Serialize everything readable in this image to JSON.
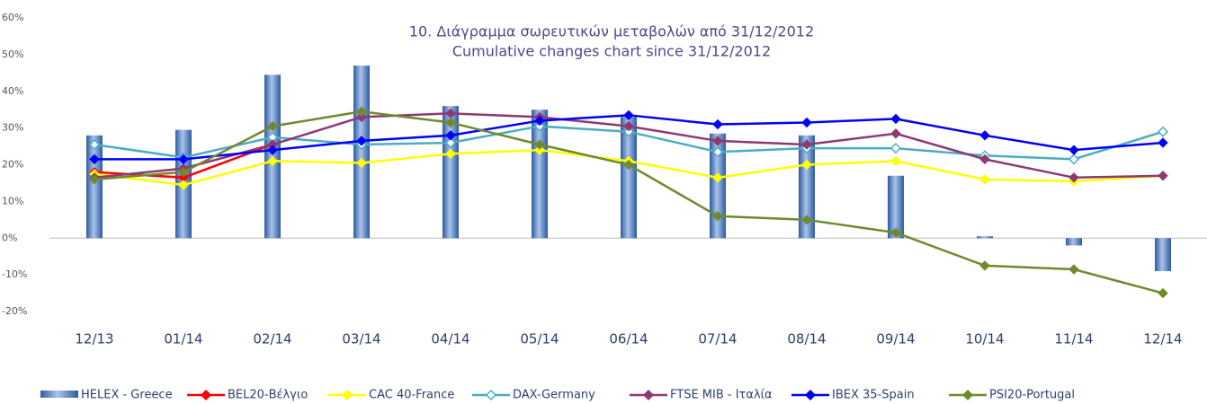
{
  "chart_data": {
    "type": "bar-line",
    "title": [
      "10.  Διάγραμμα σωρευτικών μεταβολών από 31/12/2012",
      "Cumulative changes chart since 31/12/2012"
    ],
    "categories": [
      "12/13",
      "01/14",
      "02/14",
      "03/14",
      "04/14",
      "05/14",
      "06/14",
      "07/14",
      "08/14",
      "09/14",
      "10/14",
      "11/14",
      "12/14"
    ],
    "series": [
      {
        "name": "HELEX - Greece",
        "type": "bar",
        "color": "#4f81bd",
        "values": [
          28,
          29.5,
          44.5,
          47,
          36,
          35,
          33,
          28.5,
          28,
          17,
          0.5,
          -2,
          -9
        ]
      },
      {
        "name": "BEL20-Βέλγιο",
        "type": "line",
        "color": "#ff0000",
        "values": [
          18,
          16.5,
          25.5,
          null,
          null,
          null,
          null,
          null,
          null,
          null,
          null,
          null,
          null
        ]
      },
      {
        "name": "CAC 40-France",
        "type": "line",
        "color": "#ffff00",
        "values": [
          17.5,
          14.5,
          21,
          20.5,
          23,
          24,
          21,
          16.5,
          20,
          21,
          16,
          15.5,
          17
        ]
      },
      {
        "name": "DAX-Germany",
        "type": "line",
        "color": "#4bacc6",
        "open": true,
        "values": [
          25.5,
          22,
          27.5,
          25.5,
          26,
          30.5,
          29,
          23.5,
          24.5,
          24.5,
          22.5,
          21.5,
          29
        ]
      },
      {
        "name": "FTSE MIB - Ιταλία",
        "type": "line",
        "color": "#8e3a72",
        "values": [
          16.5,
          19,
          25.5,
          33,
          34,
          33,
          30.5,
          26.5,
          25.5,
          28.5,
          21.5,
          16.5,
          17
        ]
      },
      {
        "name": "IBEX 35-Spain",
        "type": "line",
        "color": "#0000ff",
        "values": [
          21.5,
          21.5,
          24,
          26.5,
          28,
          32,
          33.5,
          31,
          31.5,
          32.5,
          28,
          24,
          26
        ]
      },
      {
        "name": "PSI20-Portugal",
        "type": "line",
        "color": "#6f8a2e",
        "values": [
          16,
          18,
          30.5,
          34.5,
          31.5,
          25.5,
          20,
          6,
          5,
          1.5,
          -7.5,
          -8.5,
          -15
        ]
      }
    ],
    "ylim": [
      -20,
      60
    ],
    "yticks": [
      {
        "value": -20,
        "label": "-20%"
      },
      {
        "value": -10,
        "label": "-10%"
      },
      {
        "value": 0,
        "label": "0%"
      },
      {
        "value": 10,
        "label": "10%"
      },
      {
        "value": 20,
        "label": "20%"
      },
      {
        "value": 30,
        "label": "30%"
      },
      {
        "value": 40,
        "label": "40%"
      },
      {
        "value": 50,
        "label": "50%"
      },
      {
        "value": 60,
        "label": "60%"
      }
    ],
    "legend": "bottom"
  }
}
